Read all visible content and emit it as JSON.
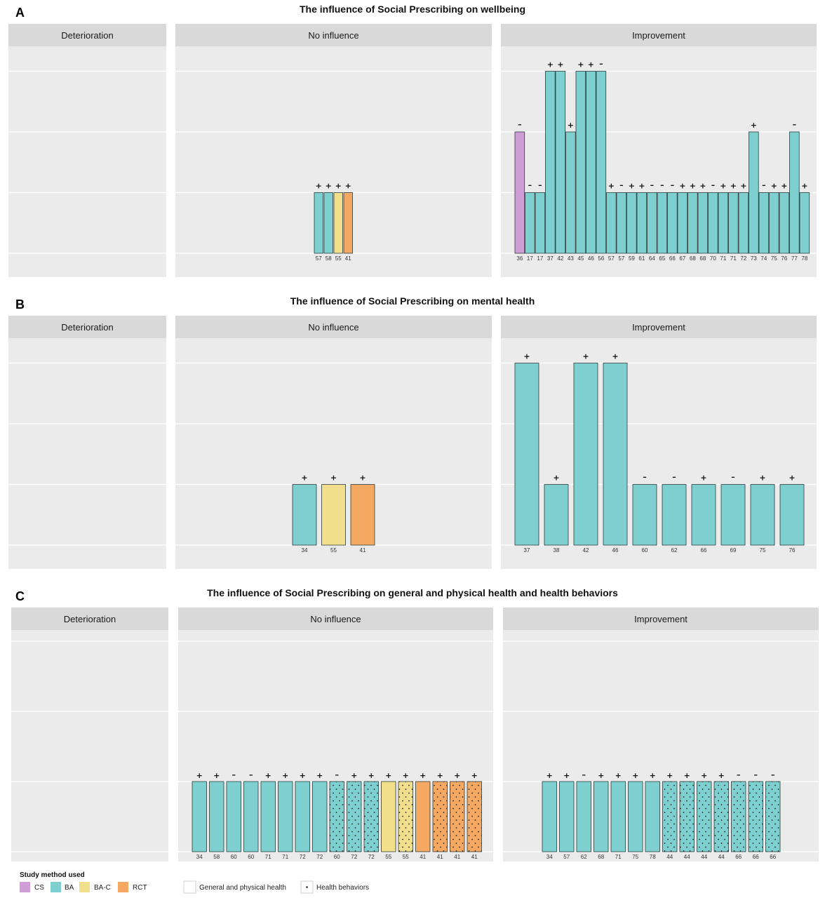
{
  "colors": {
    "CS": "#cf9ed6",
    "BA": "#7ecfcf",
    "BA-C": "#f2df8c",
    "RCT": "#f4a862",
    "panel_bg": "#ebebeb",
    "strip_bg": "#d9d9d9",
    "grid": "#ffffff"
  },
  "chart_data": [
    {
      "label": "A",
      "type": "bar",
      "title": "The influence of Social Prescribing on wellbeing",
      "facets": [
        {
          "name": "Deterioration",
          "bars": []
        },
        {
          "name": "No influence",
          "bars": [
            {
              "x": "57",
              "method": "BA",
              "value": 1,
              "sign": "+"
            },
            {
              "x": "58",
              "method": "BA",
              "value": 1,
              "sign": "+"
            },
            {
              "x": "55",
              "method": "BA-C",
              "value": 1,
              "sign": "+"
            },
            {
              "x": "41",
              "method": "RCT",
              "value": 1,
              "sign": "+"
            }
          ]
        },
        {
          "name": "Improvement",
          "bars": [
            {
              "x": "36",
              "method": "CS",
              "value": 2,
              "sign": "-"
            },
            {
              "x": "17",
              "method": "BA",
              "value": 1,
              "sign": "-"
            },
            {
              "x": "17",
              "method": "BA",
              "value": 1,
              "sign": "-"
            },
            {
              "x": "37",
              "method": "BA",
              "value": 3,
              "sign": "+"
            },
            {
              "x": "42",
              "method": "BA",
              "value": 3,
              "sign": "+"
            },
            {
              "x": "43",
              "method": "BA",
              "value": 2,
              "sign": "+"
            },
            {
              "x": "45",
              "method": "BA",
              "value": 3,
              "sign": "+"
            },
            {
              "x": "46",
              "method": "BA",
              "value": 3,
              "sign": "+"
            },
            {
              "x": "56",
              "method": "BA",
              "value": 3,
              "sign": "-"
            },
            {
              "x": "57",
              "method": "BA",
              "value": 1,
              "sign": "+"
            },
            {
              "x": "57",
              "method": "BA",
              "value": 1,
              "sign": "-"
            },
            {
              "x": "59",
              "method": "BA",
              "value": 1,
              "sign": "+"
            },
            {
              "x": "61",
              "method": "BA",
              "value": 1,
              "sign": "+"
            },
            {
              "x": "64",
              "method": "BA",
              "value": 1,
              "sign": "-"
            },
            {
              "x": "65",
              "method": "BA",
              "value": 1,
              "sign": "-"
            },
            {
              "x": "66",
              "method": "BA",
              "value": 1,
              "sign": "-"
            },
            {
              "x": "67",
              "method": "BA",
              "value": 1,
              "sign": "+"
            },
            {
              "x": "68",
              "method": "BA",
              "value": 1,
              "sign": "+"
            },
            {
              "x": "68",
              "method": "BA",
              "value": 1,
              "sign": "+"
            },
            {
              "x": "70",
              "method": "BA",
              "value": 1,
              "sign": "-"
            },
            {
              "x": "71",
              "method": "BA",
              "value": 1,
              "sign": "+"
            },
            {
              "x": "71",
              "method": "BA",
              "value": 1,
              "sign": "+"
            },
            {
              "x": "72",
              "method": "BA",
              "value": 1,
              "sign": "+"
            },
            {
              "x": "73",
              "method": "BA",
              "value": 2,
              "sign": "+"
            },
            {
              "x": "74",
              "method": "BA",
              "value": 1,
              "sign": "-"
            },
            {
              "x": "75",
              "method": "BA",
              "value": 1,
              "sign": "+"
            },
            {
              "x": "76",
              "method": "BA",
              "value": 1,
              "sign": "+"
            },
            {
              "x": "77",
              "method": "BA",
              "value": 2,
              "sign": "-"
            },
            {
              "x": "78",
              "method": "BA",
              "value": 1,
              "sign": "+"
            }
          ]
        }
      ]
    },
    {
      "label": "B",
      "type": "bar",
      "title": "The influence of Social Prescribing on mental health",
      "facets": [
        {
          "name": "Deterioration",
          "bars": []
        },
        {
          "name": "No influence",
          "bars": [
            {
              "x": "34",
              "method": "BA",
              "value": 1,
              "sign": "+"
            },
            {
              "x": "55",
              "method": "BA-C",
              "value": 1,
              "sign": "+"
            },
            {
              "x": "41",
              "method": "RCT",
              "value": 1,
              "sign": "+"
            }
          ]
        },
        {
          "name": "Improvement",
          "bars": [
            {
              "x": "37",
              "method": "BA",
              "value": 3,
              "sign": "+"
            },
            {
              "x": "38",
              "method": "BA",
              "value": 1,
              "sign": "+"
            },
            {
              "x": "42",
              "method": "BA",
              "value": 3,
              "sign": "+"
            },
            {
              "x": "46",
              "method": "BA",
              "value": 3,
              "sign": "+"
            },
            {
              "x": "60",
              "method": "BA",
              "value": 1,
              "sign": "-"
            },
            {
              "x": "62",
              "method": "BA",
              "value": 1,
              "sign": "-"
            },
            {
              "x": "66",
              "method": "BA",
              "value": 1,
              "sign": "+"
            },
            {
              "x": "69",
              "method": "BA",
              "value": 1,
              "sign": "-"
            },
            {
              "x": "75",
              "method": "BA",
              "value": 1,
              "sign": "+"
            },
            {
              "x": "76",
              "method": "BA",
              "value": 1,
              "sign": "+"
            }
          ]
        }
      ]
    },
    {
      "label": "C",
      "type": "bar",
      "title": "The influence of Social Prescribing on general and physical health and health behaviors",
      "facets": [
        {
          "name": "Deterioration",
          "bars": []
        },
        {
          "name": "No influence",
          "bars": [
            {
              "x": "34",
              "method": "BA",
              "value": 1,
              "sign": "+",
              "outcome": "general"
            },
            {
              "x": "58",
              "method": "BA",
              "value": 1,
              "sign": "+",
              "outcome": "general"
            },
            {
              "x": "60",
              "method": "BA",
              "value": 1,
              "sign": "-",
              "outcome": "general"
            },
            {
              "x": "60",
              "method": "BA",
              "value": 1,
              "sign": "-",
              "outcome": "general"
            },
            {
              "x": "71",
              "method": "BA",
              "value": 1,
              "sign": "+",
              "outcome": "general"
            },
            {
              "x": "71",
              "method": "BA",
              "value": 1,
              "sign": "+",
              "outcome": "general"
            },
            {
              "x": "72",
              "method": "BA",
              "value": 1,
              "sign": "+",
              "outcome": "general"
            },
            {
              "x": "72",
              "method": "BA",
              "value": 1,
              "sign": "+",
              "outcome": "general"
            },
            {
              "x": "60",
              "method": "BA",
              "value": 1,
              "sign": "-",
              "outcome": "behaviors"
            },
            {
              "x": "72",
              "method": "BA",
              "value": 1,
              "sign": "+",
              "outcome": "behaviors"
            },
            {
              "x": "72",
              "method": "BA",
              "value": 1,
              "sign": "+",
              "outcome": "behaviors"
            },
            {
              "x": "55",
              "method": "BA-C",
              "value": 1,
              "sign": "+",
              "outcome": "general"
            },
            {
              "x": "55",
              "method": "BA-C",
              "value": 1,
              "sign": "+",
              "outcome": "behaviors"
            },
            {
              "x": "41",
              "method": "RCT",
              "value": 1,
              "sign": "+",
              "outcome": "general"
            },
            {
              "x": "41",
              "method": "RCT",
              "value": 1,
              "sign": "+",
              "outcome": "behaviors"
            },
            {
              "x": "41",
              "method": "RCT",
              "value": 1,
              "sign": "+",
              "outcome": "behaviors"
            },
            {
              "x": "41",
              "method": "RCT",
              "value": 1,
              "sign": "+",
              "outcome": "behaviors"
            }
          ]
        },
        {
          "name": "Improvement",
          "bars": [
            {
              "x": "34",
              "method": "BA",
              "value": 1,
              "sign": "+",
              "outcome": "general"
            },
            {
              "x": "57",
              "method": "BA",
              "value": 1,
              "sign": "+",
              "outcome": "general"
            },
            {
              "x": "62",
              "method": "BA",
              "value": 1,
              "sign": "-",
              "outcome": "general"
            },
            {
              "x": "68",
              "method": "BA",
              "value": 1,
              "sign": "+",
              "outcome": "general"
            },
            {
              "x": "71",
              "method": "BA",
              "value": 1,
              "sign": "+",
              "outcome": "general"
            },
            {
              "x": "75",
              "method": "BA",
              "value": 1,
              "sign": "+",
              "outcome": "general"
            },
            {
              "x": "78",
              "method": "BA",
              "value": 1,
              "sign": "+",
              "outcome": "general"
            },
            {
              "x": "44",
              "method": "BA",
              "value": 1,
              "sign": "+",
              "outcome": "behaviors"
            },
            {
              "x": "44",
              "method": "BA",
              "value": 1,
              "sign": "+",
              "outcome": "behaviors"
            },
            {
              "x": "44",
              "method": "BA",
              "value": 1,
              "sign": "+",
              "outcome": "behaviors"
            },
            {
              "x": "44",
              "method": "BA",
              "value": 1,
              "sign": "+",
              "outcome": "behaviors"
            },
            {
              "x": "66",
              "method": "BA",
              "value": 1,
              "sign": "-",
              "outcome": "behaviors"
            },
            {
              "x": "66",
              "method": "BA",
              "value": 1,
              "sign": "-",
              "outcome": "behaviors"
            },
            {
              "x": "66",
              "method": "BA",
              "value": 1,
              "sign": "-",
              "outcome": "behaviors"
            }
          ]
        }
      ]
    }
  ],
  "legend": {
    "title": "Study method used",
    "methods": [
      "CS",
      "BA",
      "BA-C",
      "RCT"
    ],
    "outcomes": [
      {
        "key": "general",
        "label": "General and physical health"
      },
      {
        "key": "behaviors",
        "label": "Health behaviors"
      }
    ]
  }
}
